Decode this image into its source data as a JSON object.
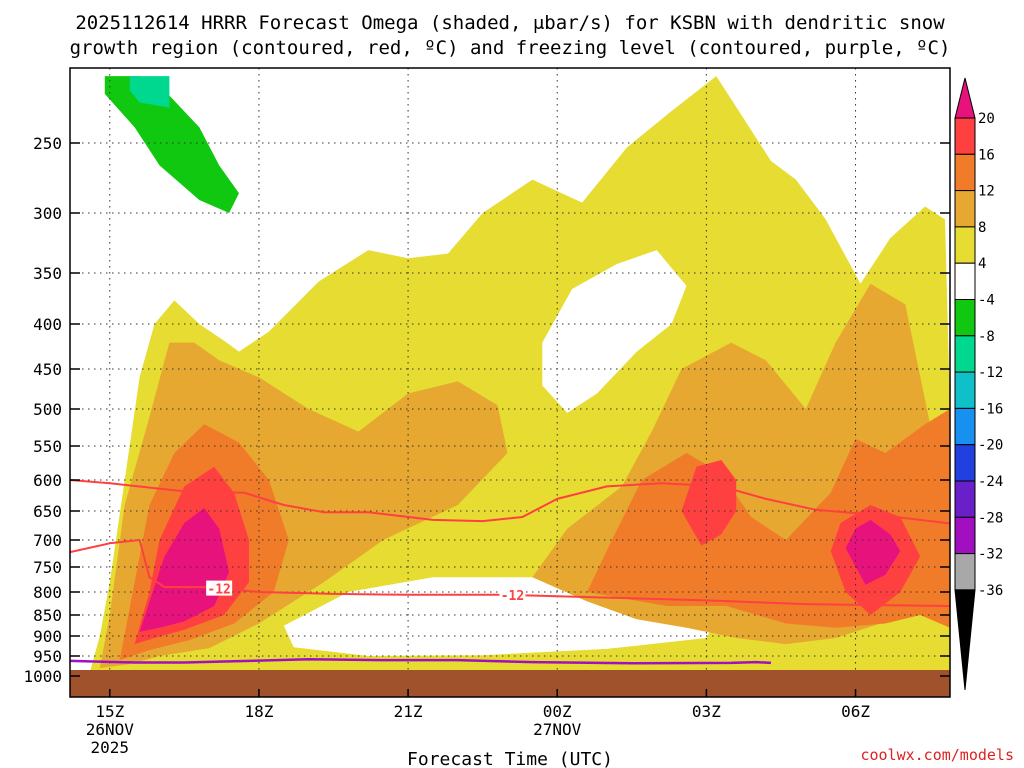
{
  "chart_data": {
    "type": "heatmap",
    "title_line1": "2025112614 HRRR Forecast Omega (shaded, μbar/s) for KSBN with dendritic snow",
    "title_line2": "growth region (contoured, red, ºC) and freezing level (contoured, purple, ºC)",
    "xlabel": "Forecast Time (UTC)",
    "credit": "coolwx.com/models",
    "x_ticks": [
      {
        "label": "15Z",
        "sub1": "26NOV",
        "sub2": "2025",
        "hour": 15
      },
      {
        "label": "18Z",
        "sub1": "",
        "sub2": "",
        "hour": 18
      },
      {
        "label": "21Z",
        "sub1": "",
        "sub2": "",
        "hour": 21
      },
      {
        "label": "00Z",
        "sub1": "27NOV",
        "sub2": "",
        "hour": 24
      },
      {
        "label": "03Z",
        "sub1": "",
        "sub2": "",
        "hour": 27
      },
      {
        "label": "06Z",
        "sub1": "",
        "sub2": "",
        "hour": 30
      }
    ],
    "x_range_hours": [
      14.2,
      31.9
    ],
    "y_ticks": [
      250,
      300,
      350,
      400,
      450,
      500,
      550,
      600,
      650,
      700,
      750,
      800,
      850,
      900,
      950,
      1000
    ],
    "y_range_mb": [
      200,
      1000
    ],
    "y_scale": "log-pressure",
    "grid": true,
    "contour_labels": [
      {
        "text": "-12",
        "hour": 17.2,
        "mb": 793
      },
      {
        "text": "-12",
        "hour": 23.1,
        "mb": 806
      }
    ],
    "colorbar": {
      "levels": [
        "20",
        "16",
        "12",
        "8",
        "4",
        "-4",
        "-8",
        "-12",
        "-16",
        "-20",
        "-24",
        "-28",
        "-32",
        "-36"
      ],
      "colors": [
        "#e8127c",
        "#ff4040",
        "#f07c2a",
        "#e6a830",
        "#e6dc32",
        "#ffffff",
        "#10c810",
        "#00d890",
        "#10c0c8",
        "#1890f0",
        "#2040e0",
        "#6a20c8",
        "#a010c0",
        "#a8a8a8",
        "#000000"
      ]
    },
    "shading_colors": {
      "white": "#ffffff",
      "yellow": "#e6dc32",
      "orange_light": "#e6a830",
      "orange": "#f07c2a",
      "red": "#ff4040",
      "magenta": "#e8127c",
      "green": "#10c810",
      "teal": "#00d890",
      "ground": "#a0522d",
      "dgz_line": "#ff4040",
      "freezing_line": "#a010c0"
    },
    "regions": [
      {
        "level": "yellow",
        "pts": [
          [
            14.6,
            990
          ],
          [
            14.8,
            900
          ],
          [
            15.0,
            780
          ],
          [
            15.3,
            600
          ],
          [
            15.6,
            460
          ],
          [
            15.9,
            400
          ],
          [
            16.3,
            376
          ],
          [
            16.8,
            400
          ],
          [
            17.3,
            418
          ],
          [
            17.6,
            430
          ],
          [
            18.2,
            408
          ],
          [
            19.2,
            358
          ],
          [
            20.2,
            330
          ],
          [
            21.0,
            337
          ],
          [
            21.8,
            333
          ],
          [
            22.5,
            300
          ],
          [
            23.5,
            275
          ],
          [
            24.5,
            292
          ],
          [
            25.4,
            253
          ],
          [
            26.3,
            230
          ],
          [
            27.2,
            210
          ],
          [
            28.3,
            262
          ],
          [
            28.8,
            275
          ],
          [
            29.4,
            305
          ],
          [
            30.1,
            360
          ],
          [
            30.7,
            320
          ],
          [
            31.4,
            295
          ],
          [
            31.8,
            305
          ],
          [
            31.9,
            500
          ],
          [
            31.9,
            990
          ]
        ]
      },
      {
        "level": "white",
        "pts": [
          [
            23.7,
            420
          ],
          [
            24.3,
            365
          ],
          [
            25.2,
            342
          ],
          [
            26.0,
            330
          ],
          [
            26.6,
            362
          ],
          [
            26.3,
            400
          ],
          [
            25.6,
            430
          ],
          [
            24.8,
            480
          ],
          [
            24.2,
            505
          ],
          [
            23.7,
            470
          ]
        ]
      },
      {
        "level": "white",
        "pts": [
          [
            18.5,
            875
          ],
          [
            19.8,
            800
          ],
          [
            21.5,
            770
          ],
          [
            24.0,
            770
          ],
          [
            26.0,
            790
          ],
          [
            27.2,
            860
          ],
          [
            27.0,
            905
          ],
          [
            25.0,
            932
          ],
          [
            22.5,
            948
          ],
          [
            20.2,
            950
          ],
          [
            18.7,
            928
          ]
        ]
      },
      {
        "level": "orange_light",
        "pts": [
          [
            14.8,
            980
          ],
          [
            15.0,
            850
          ],
          [
            15.3,
            640
          ],
          [
            15.8,
            510
          ],
          [
            16.2,
            420
          ],
          [
            16.7,
            420
          ],
          [
            17.2,
            440
          ],
          [
            18.0,
            460
          ],
          [
            19.0,
            500
          ],
          [
            20.0,
            530
          ],
          [
            21.0,
            480
          ],
          [
            22.0,
            465
          ],
          [
            22.8,
            495
          ],
          [
            23.0,
            560
          ],
          [
            22.0,
            640
          ],
          [
            20.5,
            700
          ],
          [
            19.3,
            780
          ],
          [
            18.0,
            870
          ],
          [
            17.0,
            930
          ],
          [
            16.0,
            950
          ],
          [
            15.4,
            970
          ]
        ]
      },
      {
        "level": "orange_light",
        "pts": [
          [
            23.5,
            770
          ],
          [
            24.2,
            680
          ],
          [
            25.3,
            610
          ],
          [
            25.9,
            530
          ],
          [
            26.5,
            450
          ],
          [
            27.5,
            420
          ],
          [
            28.2,
            440
          ],
          [
            29.0,
            500
          ],
          [
            29.6,
            420
          ],
          [
            30.3,
            360
          ],
          [
            31.0,
            380
          ],
          [
            31.5,
            520
          ],
          [
            31.5,
            750
          ],
          [
            31.0,
            820
          ],
          [
            30.5,
            870
          ],
          [
            29.6,
            905
          ],
          [
            28.6,
            920
          ],
          [
            27.6,
            905
          ],
          [
            26.6,
            880
          ],
          [
            25.6,
            860
          ],
          [
            24.6,
            820
          ]
        ]
      },
      {
        "level": "orange",
        "pts": [
          [
            15.2,
            960
          ],
          [
            15.5,
            780
          ],
          [
            15.8,
            640
          ],
          [
            16.3,
            560
          ],
          [
            16.9,
            520
          ],
          [
            17.6,
            545
          ],
          [
            18.2,
            600
          ],
          [
            18.6,
            700
          ],
          [
            18.3,
            800
          ],
          [
            17.5,
            870
          ],
          [
            16.6,
            910
          ],
          [
            15.8,
            935
          ]
        ]
      },
      {
        "level": "orange",
        "pts": [
          [
            24.6,
            800
          ],
          [
            25.1,
            700
          ],
          [
            25.7,
            600
          ],
          [
            26.6,
            560
          ],
          [
            27.3,
            590
          ],
          [
            27.9,
            660
          ],
          [
            28.6,
            700
          ],
          [
            29.5,
            620
          ],
          [
            30.0,
            540
          ],
          [
            30.6,
            560
          ],
          [
            31.4,
            520
          ],
          [
            31.9,
            500
          ],
          [
            31.9,
            880
          ],
          [
            31.3,
            850
          ],
          [
            30.6,
            870
          ],
          [
            29.6,
            880
          ],
          [
            28.6,
            870
          ],
          [
            27.4,
            830
          ],
          [
            26.2,
            830
          ]
        ]
      },
      {
        "level": "red",
        "pts": [
          [
            15.5,
            920
          ],
          [
            15.8,
            800
          ],
          [
            16.0,
            700
          ],
          [
            16.5,
            610
          ],
          [
            17.1,
            580
          ],
          [
            17.5,
            620
          ],
          [
            17.8,
            700
          ],
          [
            17.8,
            780
          ],
          [
            17.3,
            850
          ],
          [
            16.5,
            885
          ],
          [
            15.9,
            905
          ]
        ]
      },
      {
        "level": "red",
        "pts": [
          [
            26.5,
            650
          ],
          [
            26.8,
            580
          ],
          [
            27.3,
            570
          ],
          [
            27.6,
            600
          ],
          [
            27.6,
            650
          ],
          [
            27.3,
            690
          ],
          [
            26.9,
            710
          ]
        ]
      },
      {
        "level": "red",
        "pts": [
          [
            29.5,
            720
          ],
          [
            29.7,
            670
          ],
          [
            30.3,
            640
          ],
          [
            30.9,
            660
          ],
          [
            31.3,
            730
          ],
          [
            30.9,
            800
          ],
          [
            30.3,
            850
          ],
          [
            29.8,
            800
          ]
        ]
      },
      {
        "level": "magenta",
        "pts": [
          [
            15.6,
            890
          ],
          [
            15.8,
            820
          ],
          [
            16.1,
            730
          ],
          [
            16.5,
            670
          ],
          [
            16.9,
            645
          ],
          [
            17.2,
            680
          ],
          [
            17.4,
            760
          ],
          [
            17.1,
            830
          ],
          [
            16.5,
            865
          ],
          [
            16.0,
            880
          ]
        ]
      },
      {
        "level": "magenta",
        "pts": [
          [
            29.8,
            715
          ],
          [
            30.0,
            680
          ],
          [
            30.3,
            665
          ],
          [
            30.7,
            690
          ],
          [
            30.9,
            720
          ],
          [
            30.6,
            765
          ],
          [
            30.2,
            785
          ]
        ]
      },
      {
        "level": "green",
        "pts": [
          [
            14.9,
            210
          ],
          [
            15.6,
            210
          ],
          [
            16.1,
            218
          ],
          [
            16.8,
            240
          ],
          [
            17.2,
            265
          ],
          [
            17.6,
            285
          ],
          [
            17.4,
            300
          ],
          [
            16.8,
            290
          ],
          [
            16.0,
            265
          ],
          [
            15.5,
            240
          ],
          [
            14.9,
            220
          ]
        ]
      },
      {
        "level": "teal",
        "pts": [
          [
            15.4,
            210
          ],
          [
            16.2,
            210
          ],
          [
            16.2,
            228
          ],
          [
            15.6,
            225
          ],
          [
            15.4,
            218
          ]
        ]
      }
    ],
    "dgz_upper": [
      [
        14.2,
        600
      ],
      [
        15.0,
        605
      ],
      [
        16.5,
        618
      ],
      [
        17.7,
        620
      ],
      [
        18.5,
        640
      ],
      [
        19.3,
        652
      ],
      [
        20.2,
        652
      ],
      [
        21.5,
        665
      ],
      [
        22.5,
        667
      ],
      [
        23.3,
        660
      ],
      [
        24.0,
        630
      ],
      [
        25.0,
        610
      ],
      [
        26.1,
        605
      ],
      [
        27.3,
        610
      ],
      [
        28.2,
        630
      ],
      [
        29.2,
        648
      ],
      [
        30.6,
        658
      ],
      [
        31.9,
        671
      ]
    ],
    "dgz_lower": [
      [
        14.2,
        722
      ],
      [
        15.0,
        706
      ],
      [
        15.6,
        700
      ],
      [
        15.7,
        735
      ],
      [
        15.8,
        770
      ],
      [
        16.1,
        790
      ],
      [
        17.0,
        790
      ],
      [
        18.0,
        800
      ],
      [
        19.5,
        804
      ],
      [
        21.0,
        806
      ],
      [
        23.0,
        806
      ],
      [
        25.0,
        812
      ],
      [
        27.0,
        818
      ],
      [
        29.0,
        826
      ],
      [
        31.9,
        830
      ]
    ],
    "freezing_level": [
      [
        14.2,
        962
      ],
      [
        15.5,
        966
      ],
      [
        16.5,
        966
      ],
      [
        17.5,
        963
      ],
      [
        19.0,
        958
      ],
      [
        20.5,
        960
      ],
      [
        22.0,
        960
      ],
      [
        23.5,
        965
      ],
      [
        25.5,
        968
      ],
      [
        27.5,
        967
      ],
      [
        28.0,
        965
      ],
      [
        28.3,
        967
      ]
    ]
  }
}
